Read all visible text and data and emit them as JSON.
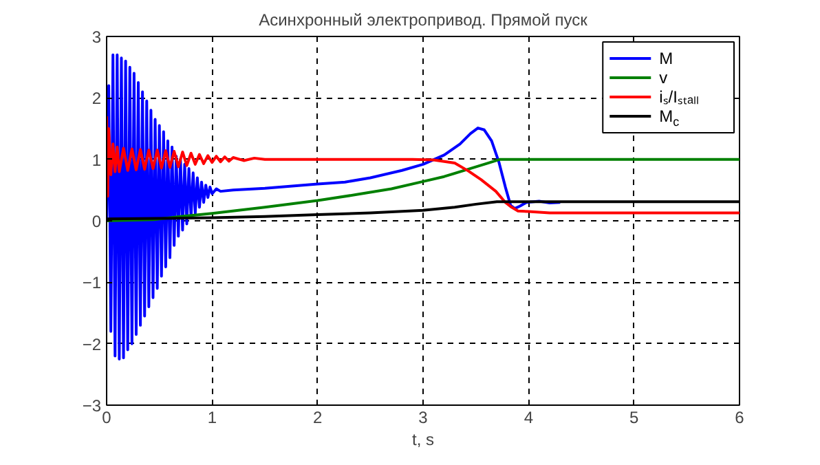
{
  "chart_data": {
    "type": "line",
    "title": "Асинхронный электропривод. Прямой пуск",
    "xlabel": "t, s",
    "xlim": [
      0,
      6
    ],
    "xticks": [
      0,
      1,
      2,
      3,
      4,
      5,
      6
    ],
    "ylim": [
      -3,
      3
    ],
    "yticks": [
      -3,
      -2,
      -1,
      0,
      1,
      2,
      3
    ],
    "grid": true,
    "legend": "top right",
    "line_style": "solid",
    "marker": "none",
    "series": [
      {
        "name": "M",
        "color": "#0000ff",
        "x": [
          0,
          0.02,
          0.04,
          0.06,
          0.08,
          0.1,
          0.12,
          0.14,
          0.16,
          0.18,
          0.2,
          0.22,
          0.24,
          0.26,
          0.28,
          0.3,
          0.32,
          0.34,
          0.36,
          0.38,
          0.4,
          0.42,
          0.44,
          0.46,
          0.48,
          0.5,
          0.52,
          0.54,
          0.56,
          0.58,
          0.6,
          0.62,
          0.64,
          0.66,
          0.68,
          0.7,
          0.72,
          0.74,
          0.76,
          0.78,
          0.8,
          0.82,
          0.84,
          0.86,
          0.88,
          0.9,
          0.92,
          0.94,
          0.96,
          0.98,
          1.0,
          1.04,
          1.08,
          1.2,
          1.5,
          2.0,
          2.26,
          2.5,
          2.8,
          3.0,
          3.2,
          3.35,
          3.45,
          3.52,
          3.58,
          3.65,
          3.72,
          3.78,
          3.83,
          3.87,
          3.92,
          3.98,
          4.1,
          4.2,
          4.3
        ],
        "values": [
          0,
          2.2,
          -1.8,
          2.7,
          -2.2,
          2.7,
          -2.25,
          2.65,
          -2.23,
          2.6,
          -2.1,
          2.5,
          -2.0,
          2.4,
          -1.85,
          2.25,
          -1.7,
          2.1,
          -1.55,
          1.95,
          -1.4,
          1.8,
          -1.25,
          1.65,
          -1.1,
          1.55,
          -0.9,
          1.45,
          -0.75,
          1.3,
          -0.6,
          1.2,
          -0.4,
          1.05,
          -0.25,
          1.0,
          -0.15,
          0.92,
          -0.05,
          0.85,
          0.05,
          0.78,
          0.12,
          0.7,
          0.22,
          0.63,
          0.3,
          0.58,
          0.38,
          0.55,
          0.44,
          0.52,
          0.48,
          0.5,
          0.53,
          0.6,
          0.63,
          0.7,
          0.82,
          0.92,
          1.07,
          1.25,
          1.42,
          1.51,
          1.48,
          1.3,
          0.95,
          0.55,
          0.25,
          0.2,
          0.24,
          0.3,
          0.32,
          0.29,
          0.3
        ]
      },
      {
        "name": "v",
        "color": "#008000",
        "x": [
          0,
          0.45,
          0.7,
          1.0,
          1.5,
          2.0,
          2.38,
          2.7,
          3.0,
          3.2,
          3.43,
          3.6,
          3.73,
          6
        ],
        "values": [
          0,
          0.02,
          0.07,
          0.12,
          0.22,
          0.33,
          0.43,
          0.52,
          0.64,
          0.72,
          0.84,
          0.93,
          1.0,
          1.0
        ]
      },
      {
        "name": "iₛ/Iₛₜₐₗₗ",
        "color": "#ff0000",
        "x": [
          0,
          0.01,
          0.02,
          0.04,
          0.06,
          0.08,
          0.1,
          0.12,
          0.16,
          0.2,
          0.24,
          0.28,
          0.32,
          0.36,
          0.4,
          0.44,
          0.48,
          0.52,
          0.56,
          0.6,
          0.64,
          0.68,
          0.72,
          0.76,
          0.8,
          0.84,
          0.88,
          0.92,
          0.96,
          1.0,
          1.04,
          1.08,
          1.12,
          1.16,
          1.2,
          1.3,
          1.4,
          1.5,
          2.9,
          3.1,
          3.3,
          3.43,
          3.55,
          3.69,
          3.78,
          3.84,
          3.9,
          4.0,
          4.2,
          6
        ],
        "values": [
          1.7,
          0.4,
          1.5,
          0.75,
          1.25,
          0.8,
          1.2,
          0.8,
          1.18,
          0.82,
          1.17,
          0.83,
          1.16,
          0.84,
          1.15,
          0.85,
          1.15,
          0.86,
          1.14,
          0.87,
          1.13,
          0.88,
          1.12,
          0.9,
          1.1,
          0.92,
          1.08,
          0.93,
          1.06,
          0.95,
          1.05,
          0.96,
          1.04,
          0.97,
          1.03,
          0.98,
          1.02,
          1.0,
          1.0,
          0.99,
          0.94,
          0.81,
          0.67,
          0.48,
          0.3,
          0.22,
          0.16,
          0.15,
          0.13,
          0.13
        ]
      },
      {
        "name": "M$_{c}$",
        "color": "#000000",
        "x": [
          0,
          1,
          1.5,
          2,
          2.5,
          3,
          3.3,
          3.5,
          3.7,
          6
        ],
        "values": [
          0.03,
          0.05,
          0.07,
          0.1,
          0.13,
          0.17,
          0.22,
          0.27,
          0.31,
          0.31
        ]
      }
    ]
  }
}
